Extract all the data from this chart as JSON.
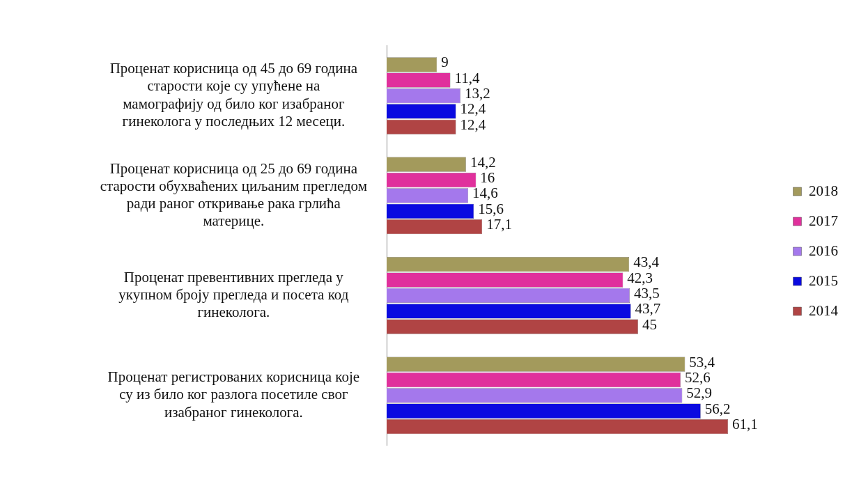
{
  "chart_data": {
    "type": "bar",
    "orientation": "horizontal",
    "categories": [
      "Проценат корисница од 45 до 69 година старости које су упућене на мамографију од било ког изабраног гинеколога у последњих 12 месеци.",
      "Проценат корисница од 25 до 69 година старости обухваћених циљаним прегледом ради раног откривање рака грлића материце.",
      "Проценат превентивних прегледа у укупном броју прегледа и посета код гинеколога.",
      "Проценат регистрованих корисница које су из било ког разлога посетиле свог изабраног гинеколога."
    ],
    "series": [
      {
        "name": "2018",
        "color": "#a39a5c",
        "values": [
          9,
          14.2,
          43.4,
          53.4
        ],
        "value_labels": [
          "9",
          "14,2",
          "43,4",
          "53,4"
        ]
      },
      {
        "name": "2017",
        "color": "#e0309c",
        "values": [
          11.4,
          16,
          42.3,
          52.6
        ],
        "value_labels": [
          "11,4",
          "16",
          "42,3",
          "52,6"
        ]
      },
      {
        "name": "2016",
        "color": "#a478ec",
        "values": [
          13.2,
          14.6,
          43.5,
          52.9
        ],
        "value_labels": [
          "13,2",
          "14,6",
          "43,5",
          "52,9"
        ]
      },
      {
        "name": "2015",
        "color": "#0a0ae0",
        "values": [
          12.4,
          15.6,
          43.7,
          56.2
        ],
        "value_labels": [
          "12,4",
          "15,6",
          "43,7",
          "56,2"
        ]
      },
      {
        "name": "2014",
        "color": "#b04444",
        "values": [
          12.4,
          17.1,
          45,
          61.1
        ],
        "value_labels": [
          "12,4",
          "17,1",
          "45",
          "61,1"
        ]
      }
    ],
    "tick_labels": "y",
    "grid": false,
    "legend": "right"
  }
}
